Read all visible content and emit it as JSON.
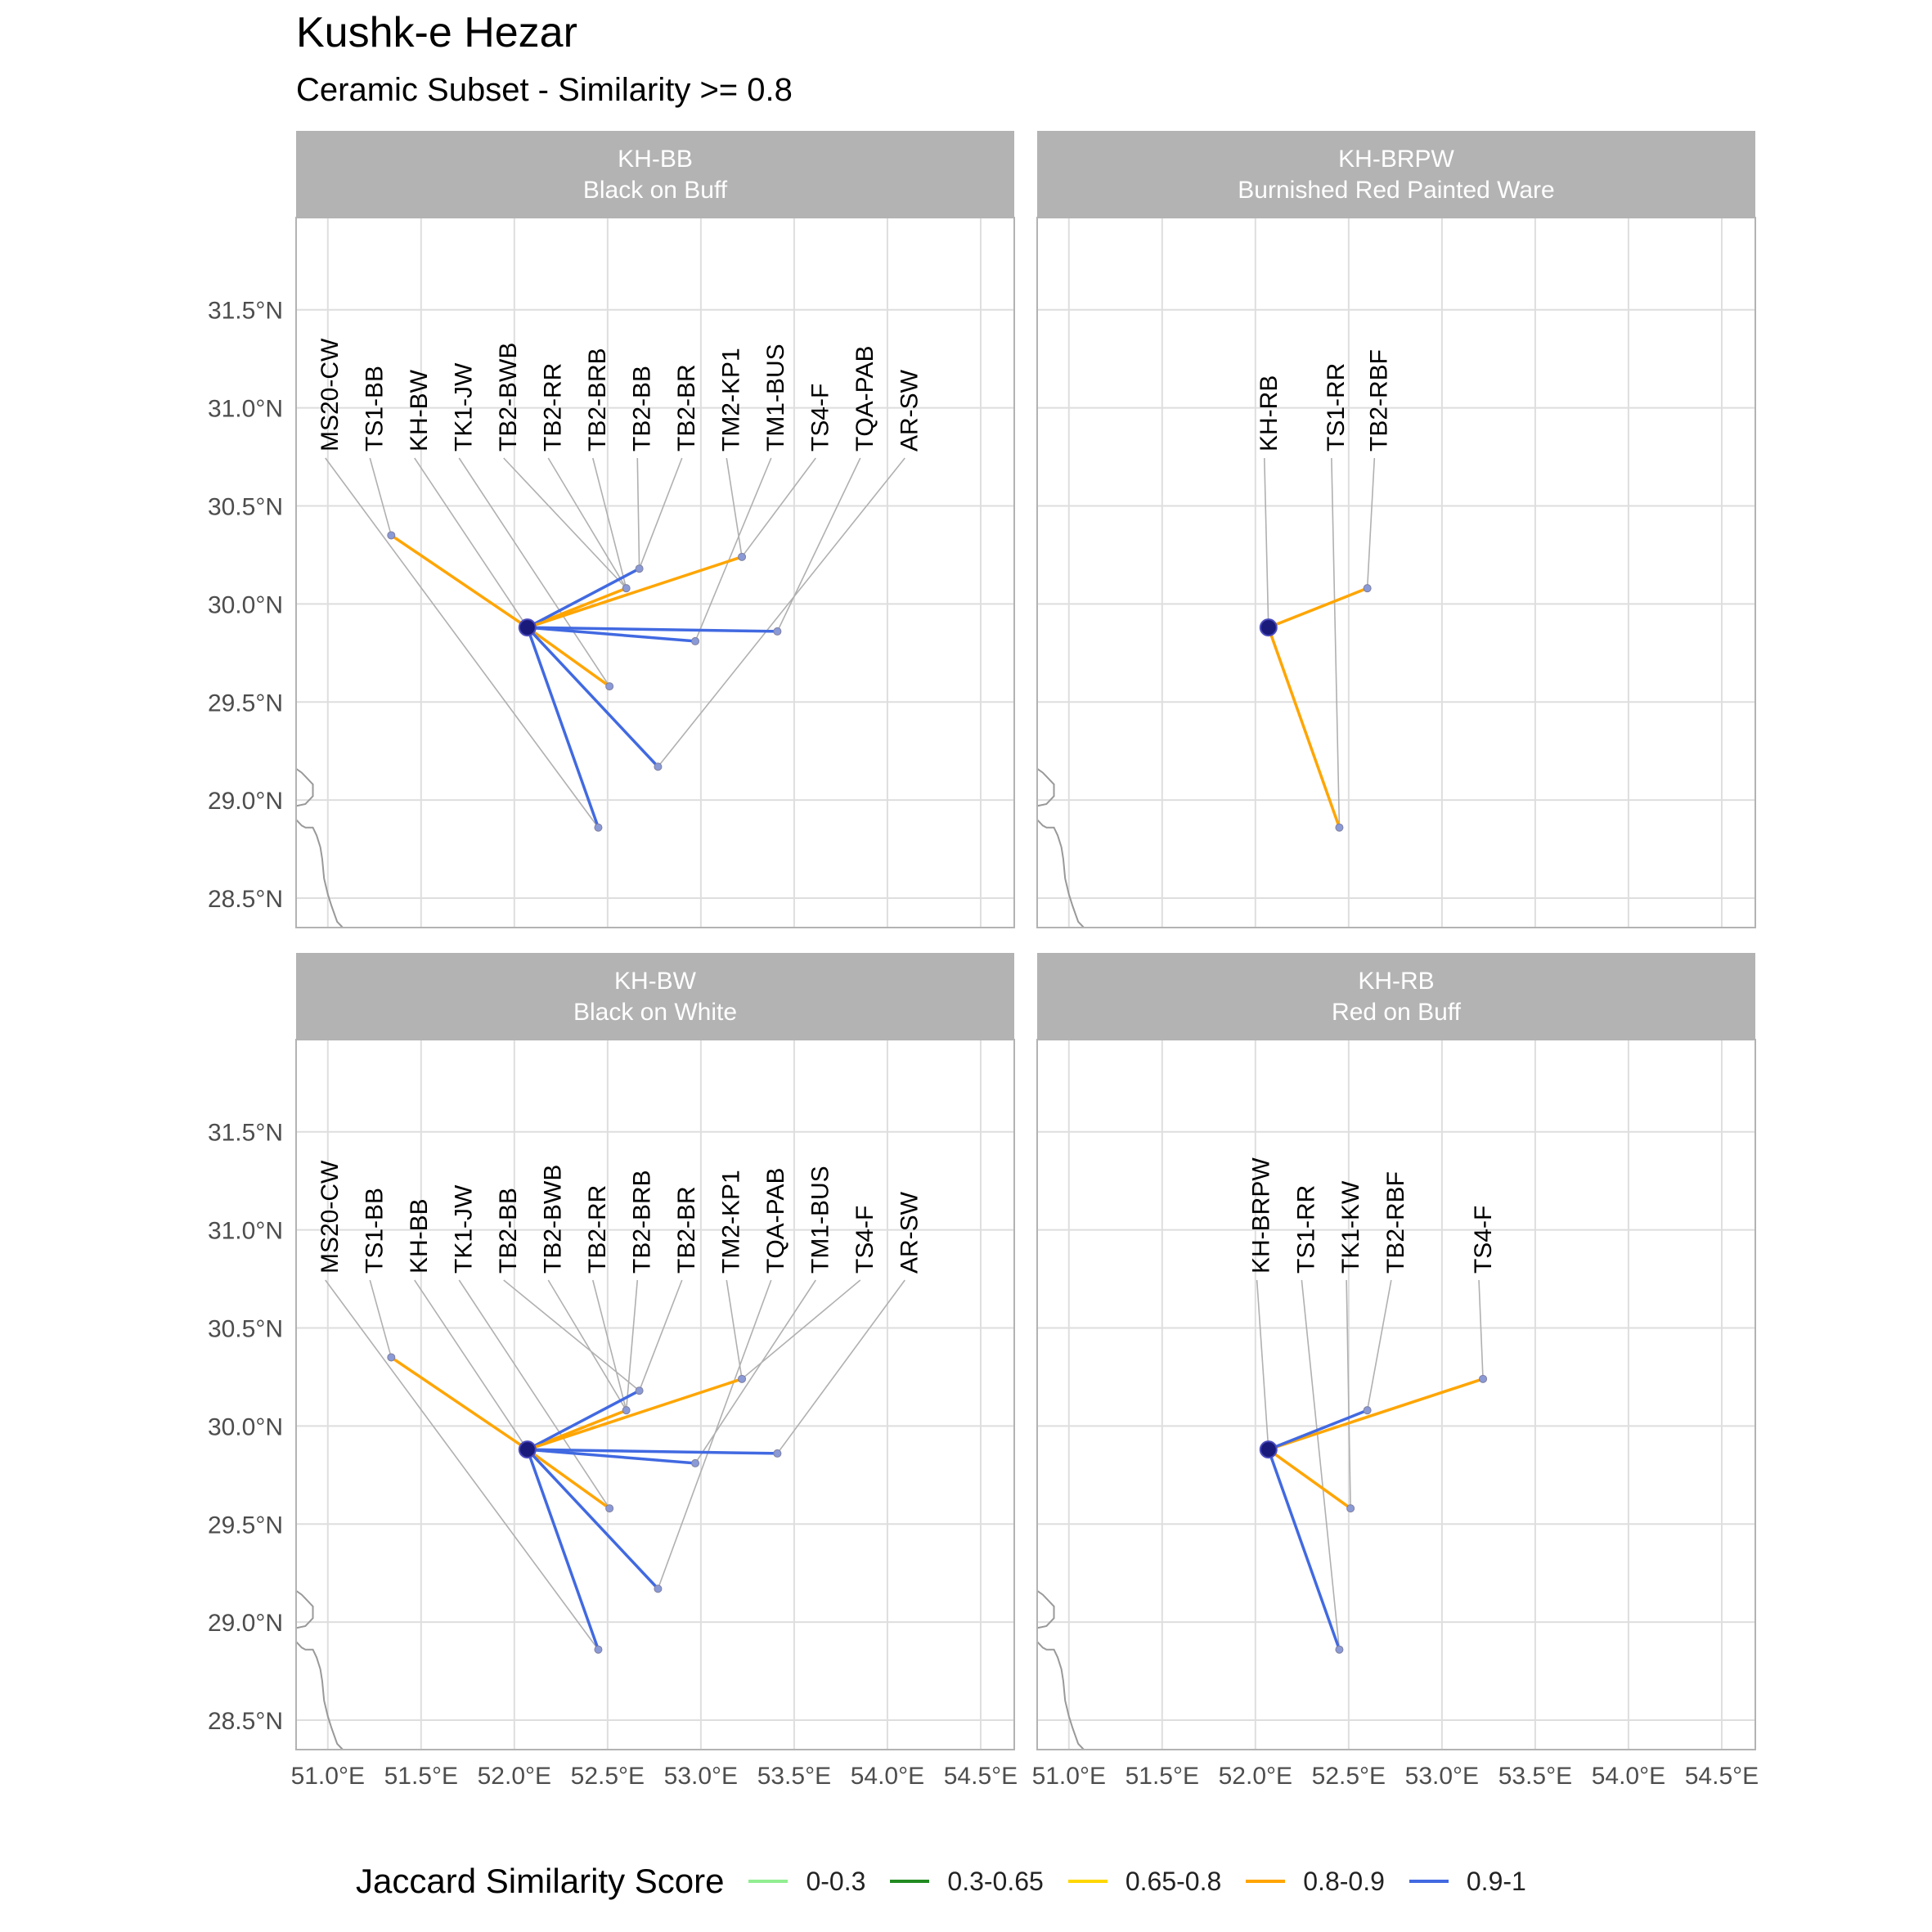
{
  "title": "Kushk-e Hezar",
  "subtitle": "Ceramic Subset - Similarity >= 0.8",
  "legend": {
    "title": "Jaccard Similarity Score",
    "items": [
      {
        "label": "0-0.3",
        "color": "#90EE90"
      },
      {
        "label": "0.3-0.65",
        "color": "#228B22"
      },
      {
        "label": "0.65-0.8",
        "color": "#FFD700"
      },
      {
        "label": "0.8-0.9",
        "color": "#FFA500"
      },
      {
        "label": "0.9-1",
        "color": "#4169E1"
      }
    ]
  },
  "axes": {
    "lon_ticks": [
      "51.0°E",
      "51.5°E",
      "52.0°E",
      "52.5°E",
      "53.0°E",
      "53.5°E",
      "54.0°E",
      "54.5°E"
    ],
    "lat_ticks": [
      "28.5°N",
      "29.0°N",
      "29.5°N",
      "30.0°N",
      "30.5°N",
      "31.0°N",
      "31.5°N"
    ],
    "lon_range": [
      50.83,
      54.68
    ],
    "lat_range": [
      28.35,
      31.97
    ]
  },
  "sites": {
    "KH": {
      "lon": 52.07,
      "lat": 29.88
    },
    "MS20-CW": {
      "lon": 52.45,
      "lat": 28.86
    },
    "TS1-BB": {
      "lon": 51.34,
      "lat": 30.35
    },
    "TS1-RR": {
      "lon": 52.45,
      "lat": 28.86
    },
    "TK1-JW": {
      "lon": 52.51,
      "lat": 29.58
    },
    "TK1-KW": {
      "lon": 52.51,
      "lat": 29.58
    },
    "TB2-BWB": {
      "lon": 52.6,
      "lat": 30.08
    },
    "TB2-RR": {
      "lon": 52.6,
      "lat": 30.08
    },
    "TB2-BRB": {
      "lon": 52.6,
      "lat": 30.08
    },
    "TB2-BB": {
      "lon": 52.67,
      "lat": 30.18
    },
    "TB2-BR": {
      "lon": 52.67,
      "lat": 30.18
    },
    "TB2-RBF": {
      "lon": 52.6,
      "lat": 30.08
    },
    "TM2-KP1": {
      "lon": 52.77,
      "lat": 29.17
    },
    "TM1-BUS": {
      "lon": 52.97,
      "lat": 29.81
    },
    "TS4-F": {
      "lon": 53.22,
      "lat": 30.24
    },
    "TQA-PAB": {
      "lon": 53.41,
      "lat": 29.86
    },
    "AR-SW": {
      "lon": 52.77,
      "lat": 29.17
    }
  },
  "panels": [
    {
      "id": "KH-BB",
      "strip_title": "KH-BB",
      "strip_subtitle": "Black on Buff",
      "edges": [
        {
          "to": "TS1-BB",
          "class": "0.8-0.9"
        },
        {
          "to": "TB2-BWB",
          "class": "0.8-0.9"
        },
        {
          "to": "TB2-BB",
          "class": "0.9-1"
        },
        {
          "to": "TS4-F",
          "class": "0.8-0.9"
        },
        {
          "to": "TM1-BUS",
          "class": "0.9-1"
        },
        {
          "to": "TQA-PAB",
          "class": "0.9-1"
        },
        {
          "to": "TK1-JW",
          "class": "0.8-0.9"
        },
        {
          "to": "TM2-KP1",
          "class": "0.9-1"
        },
        {
          "to": "MS20-CW",
          "class": "0.9-1"
        }
      ],
      "labels": [
        {
          "text": "MS20-CW",
          "site": "MS20-CW"
        },
        {
          "text": "TS1-BB",
          "site": "TS1-BB"
        },
        {
          "text": "KH-BW",
          "site": "KH"
        },
        {
          "text": "TK1-JW",
          "site": "TK1-JW"
        },
        {
          "text": "TB2-BWB",
          "site": "TB2-BWB"
        },
        {
          "text": "TB2-RR",
          "site": "TB2-RR"
        },
        {
          "text": "TB2-BRB",
          "site": "TB2-BRB"
        },
        {
          "text": "TB2-BB",
          "site": "TB2-BB"
        },
        {
          "text": "TB2-BR",
          "site": "TB2-BR"
        },
        {
          "text": "TM2-KP1",
          "site": "TS4-F"
        },
        {
          "text": "TM1-BUS",
          "site": "TM1-BUS"
        },
        {
          "text": "TS4-F",
          "site": "TS4-F"
        },
        {
          "text": "TQA-PAB",
          "site": "TQA-PAB"
        },
        {
          "text": "AR-SW",
          "site": "TM2-KP1"
        }
      ]
    },
    {
      "id": "KH-BRPW",
      "strip_title": "KH-BRPW",
      "strip_subtitle": "Burnished Red Painted Ware",
      "edges": [
        {
          "to": "TB2-RBF",
          "class": "0.8-0.9"
        },
        {
          "to": "TS1-RR",
          "class": "0.8-0.9"
        }
      ],
      "labels": [
        {
          "text": "KH-RB",
          "site": "KH"
        },
        {
          "text": "TS1-RR",
          "site": "TS1-RR"
        },
        {
          "text": "TB2-RBF",
          "site": "TB2-RBF"
        }
      ]
    },
    {
      "id": "KH-BW",
      "strip_title": "KH-BW",
      "strip_subtitle": "Black on White",
      "edges": [
        {
          "to": "TS1-BB",
          "class": "0.8-0.9"
        },
        {
          "to": "TB2-BWB",
          "class": "0.8-0.9"
        },
        {
          "to": "TB2-BB",
          "class": "0.9-1"
        },
        {
          "to": "TS4-F",
          "class": "0.8-0.9"
        },
        {
          "to": "TM1-BUS",
          "class": "0.9-1"
        },
        {
          "to": "TQA-PAB",
          "class": "0.9-1"
        },
        {
          "to": "TK1-JW",
          "class": "0.8-0.9"
        },
        {
          "to": "TM2-KP1",
          "class": "0.9-1"
        },
        {
          "to": "MS20-CW",
          "class": "0.9-1"
        }
      ],
      "labels": [
        {
          "text": "MS20-CW",
          "site": "MS20-CW"
        },
        {
          "text": "TS1-BB",
          "site": "TS1-BB"
        },
        {
          "text": "KH-BB",
          "site": "KH"
        },
        {
          "text": "TK1-JW",
          "site": "TK1-JW"
        },
        {
          "text": "TB2-BB",
          "site": "TB2-BB"
        },
        {
          "text": "TB2-BWB",
          "site": "TB2-BWB"
        },
        {
          "text": "TB2-RR",
          "site": "TB2-RR"
        },
        {
          "text": "TB2-BRB",
          "site": "TB2-BRB"
        },
        {
          "text": "TB2-BR",
          "site": "TB2-BR"
        },
        {
          "text": "TM2-KP1",
          "site": "TS4-F"
        },
        {
          "text": "TQA-PAB",
          "site": "TM2-KP1"
        },
        {
          "text": "TM1-BUS",
          "site": "TM1-BUS"
        },
        {
          "text": "TS4-F",
          "site": "TS4-F"
        },
        {
          "text": "AR-SW",
          "site": "TQA-PAB"
        }
      ]
    },
    {
      "id": "KH-RB",
      "strip_title": "KH-RB",
      "strip_subtitle": "Red on Buff",
      "edges": [
        {
          "to": "TS4-F",
          "class": "0.8-0.9"
        },
        {
          "to": "TB2-RBF",
          "class": "0.9-1"
        },
        {
          "to": "TK1-KW",
          "class": "0.8-0.9"
        },
        {
          "to": "TS1-RR",
          "class": "0.9-1"
        }
      ],
      "labels": [
        {
          "text": "KH-BRPW",
          "site": "KH"
        },
        {
          "text": "TS1-RR",
          "site": "TS1-RR"
        },
        {
          "text": "TK1-KW",
          "site": "TK1-KW"
        },
        {
          "text": "TB2-RBF",
          "site": "TB2-RBF"
        },
        {
          "text": "TS4-F",
          "site": "TS4-F"
        }
      ]
    }
  ]
}
